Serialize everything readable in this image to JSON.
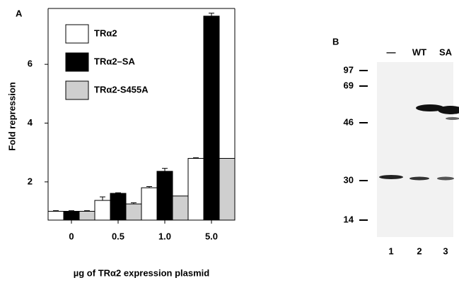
{
  "chart_data": {
    "type": "bar",
    "panel_label": "A",
    "y_label": "Fold repression",
    "x_label": "µg of TRα2 expression plasmid",
    "categories": [
      "0",
      "0.5",
      "1.0",
      "5.0"
    ],
    "series": [
      {
        "name": "TRα2",
        "color": "#ffffff",
        "values": [
          1.0,
          1.37,
          1.8,
          2.8
        ],
        "errors": [
          0.02,
          0.12,
          0.04,
          0.02
        ]
      },
      {
        "name": "TRα2–SA",
        "color": "#000000",
        "values": [
          1.0,
          1.61,
          2.36,
          7.64
        ],
        "errors": [
          0.02,
          0.02,
          0.1,
          0.1
        ]
      },
      {
        "name": "TRα2-S455A",
        "color": "#cfcfcf",
        "values": [
          1.0,
          1.25,
          1.52,
          2.8
        ],
        "errors": [
          0.02,
          0.04,
          0,
          0
        ]
      }
    ],
    "ylim": [
      0.7,
      7.9
    ],
    "yticks": [
      2,
      4,
      6
    ]
  },
  "blot": {
    "panel_label": "B",
    "lanes": [
      "—",
      "WT",
      "SA"
    ],
    "lane_numbers": [
      "1",
      "2",
      "3"
    ],
    "markers": [
      "97",
      "69",
      "46",
      "30",
      "14"
    ]
  }
}
